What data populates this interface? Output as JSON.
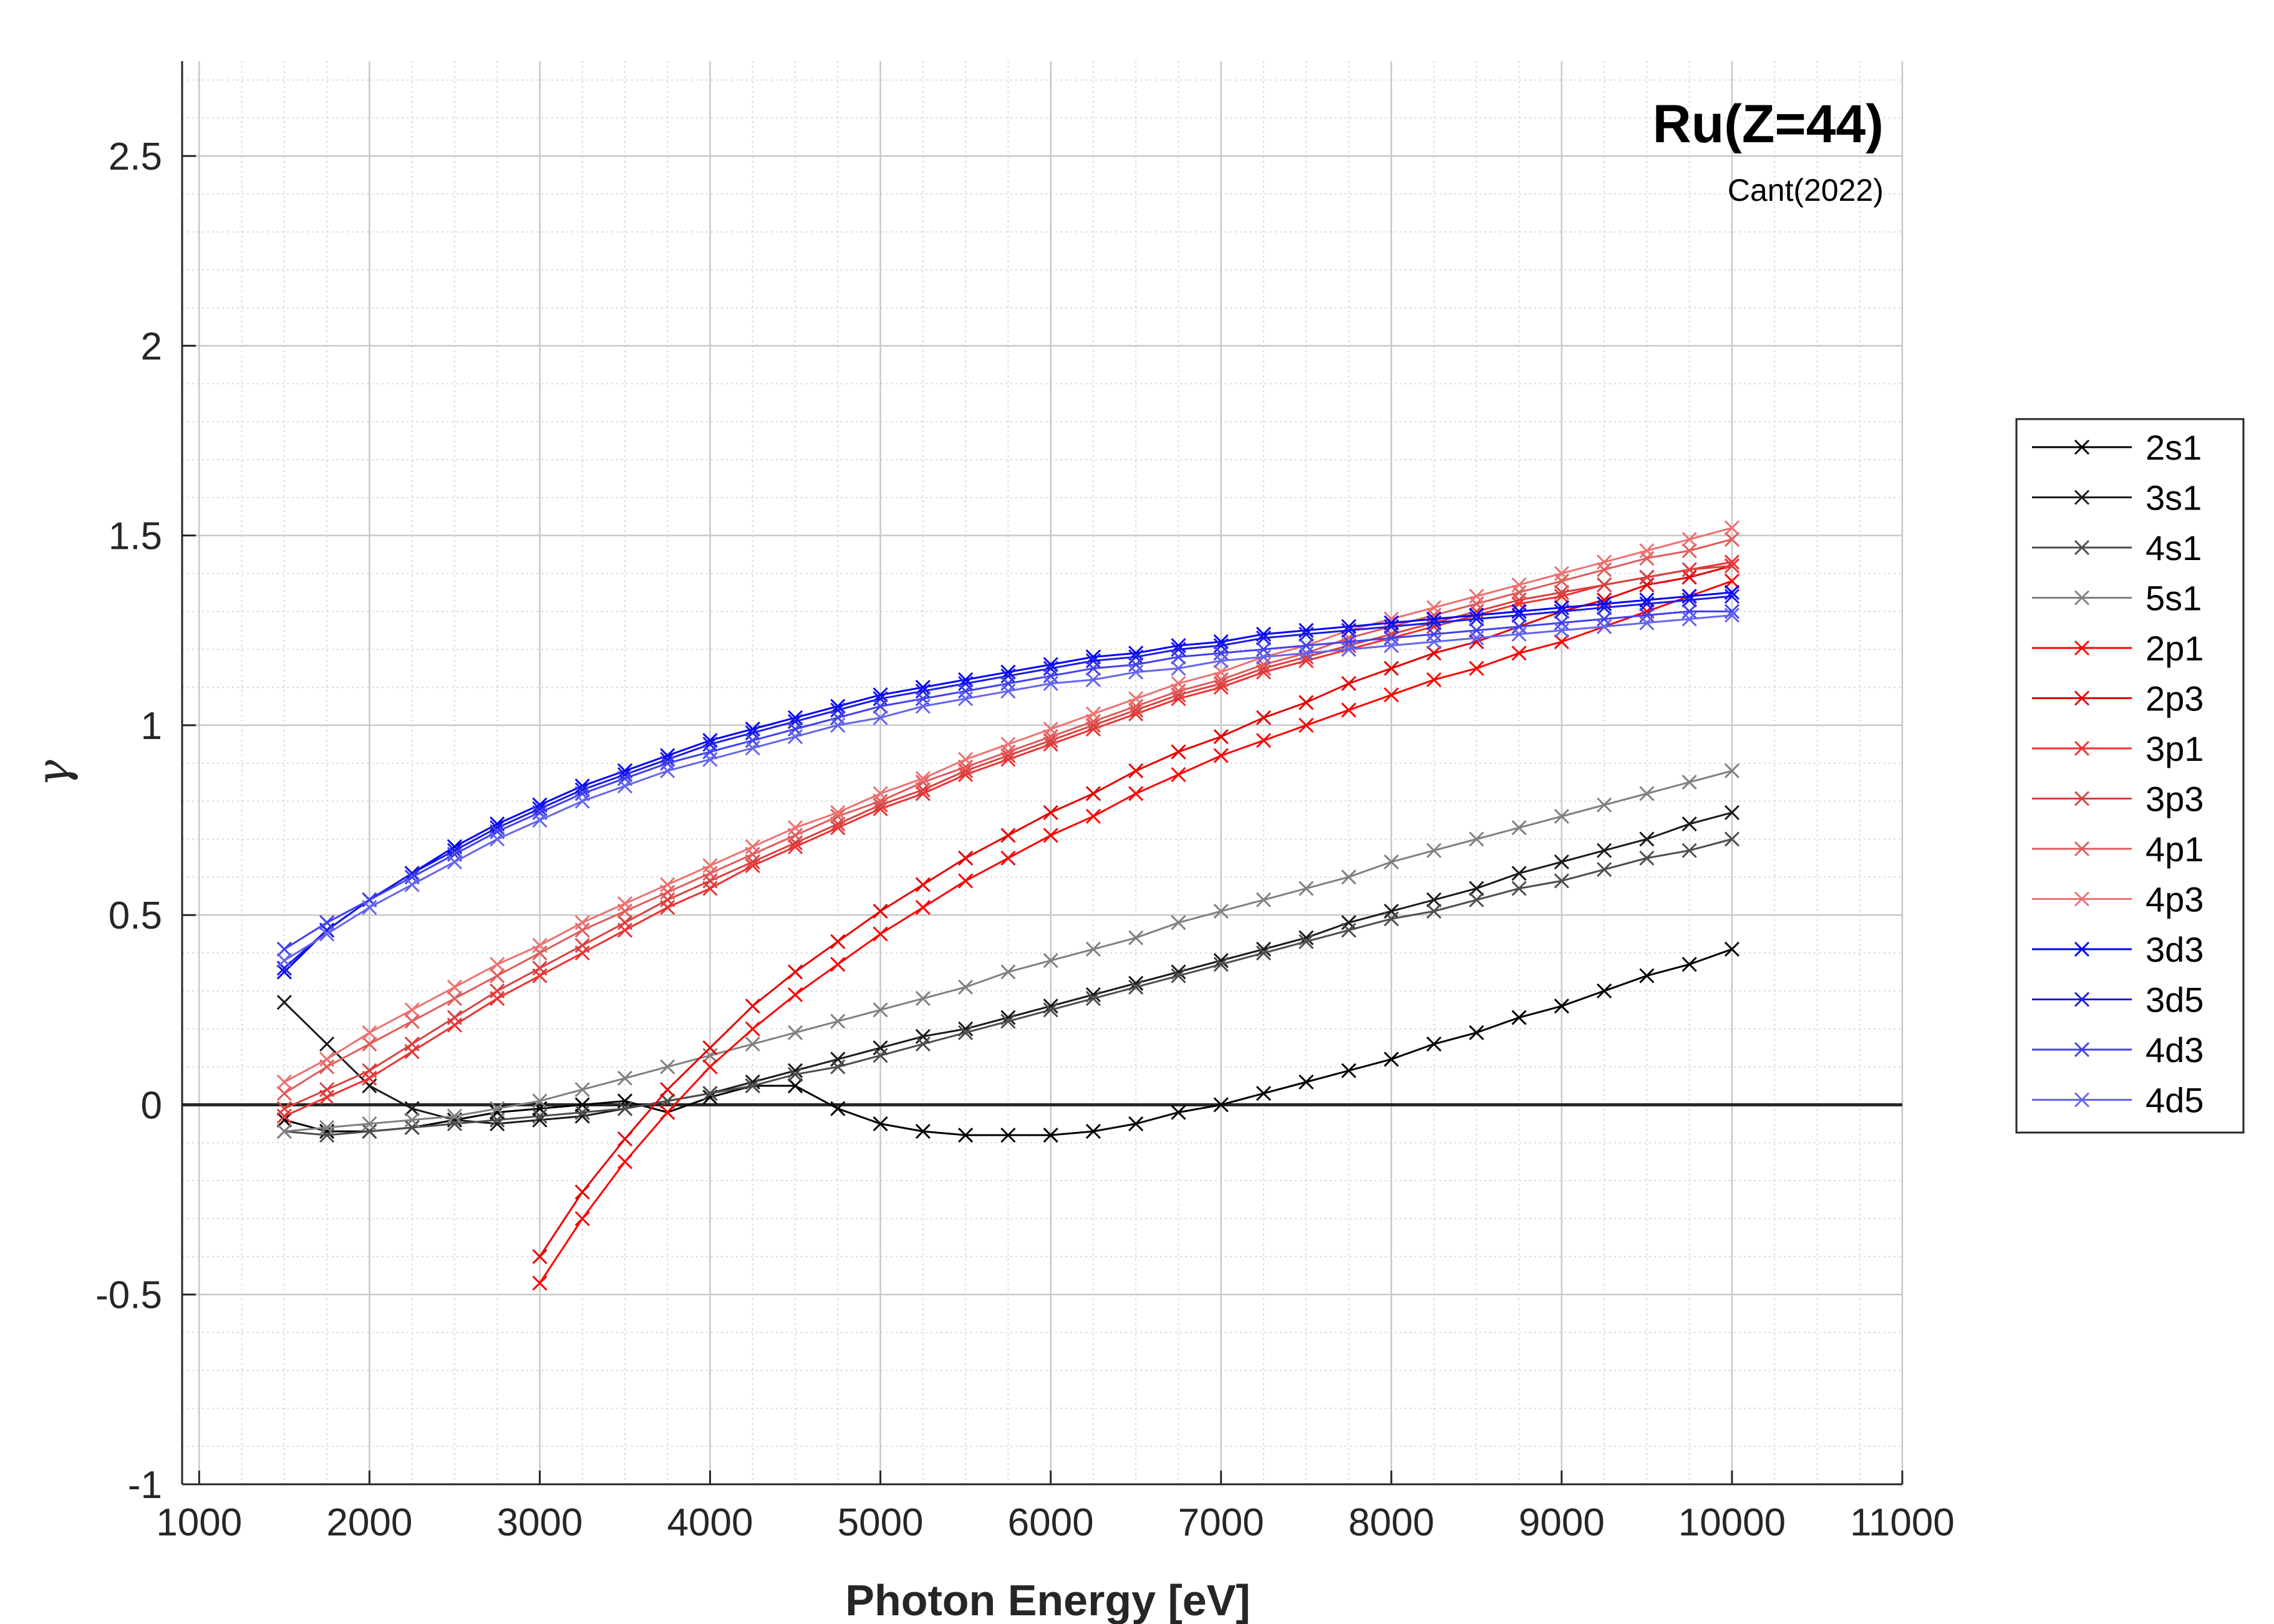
{
  "chart_data": {
    "type": "line",
    "title": "Ru(Z=44)",
    "subtitle": "Cant(2022)",
    "xlabel": "Photon Energy [eV]",
    "ylabel": "γ",
    "xlim": [
      900,
      11000
    ],
    "ylim": [
      -1,
      2.75
    ],
    "xticks": [
      1000,
      2000,
      3000,
      4000,
      5000,
      6000,
      7000,
      8000,
      9000,
      10000,
      11000
    ],
    "yticks": [
      -1,
      -0.5,
      0,
      0.5,
      1,
      1.5,
      2,
      2.5
    ],
    "xtick_labels": [
      "1000",
      "2000",
      "3000",
      "4000",
      "5000",
      "6000",
      "7000",
      "8000",
      "9000",
      "10000",
      "11000"
    ],
    "ytick_labels": [
      "-1",
      "-0.5",
      "0",
      "0.5",
      "1",
      "1.5",
      "2",
      "2.5"
    ],
    "grid": "on (major and minor)",
    "legend_position": "right-outside",
    "marker": "x",
    "series": [
      {
        "name": "2s1",
        "color": "#000000",
        "x": [
          1500,
          1750,
          2000,
          2250,
          2500,
          2750,
          3000,
          3250,
          3500,
          3750,
          4000,
          4250,
          4500,
          4750,
          5000,
          5250,
          5500,
          5750,
          6000,
          6250,
          6500,
          6750,
          7000,
          7250,
          7500,
          7750,
          8000,
          8250,
          8500,
          8750,
          9000,
          9250,
          9500,
          9750,
          10000
        ],
        "y": [
          -0.04,
          -0.07,
          -0.07,
          -0.06,
          -0.04,
          -0.02,
          -0.01,
          0.0,
          0.01,
          -0.02,
          0.02,
          0.05,
          0.05,
          -0.01,
          -0.05,
          -0.07,
          -0.08,
          -0.08,
          -0.08,
          -0.07,
          -0.05,
          -0.02,
          0.0,
          0.03,
          0.06,
          0.09,
          0.12,
          0.16,
          0.19,
          0.23,
          0.26,
          0.3,
          0.34,
          0.37,
          0.41
        ]
      },
      {
        "name": "3s1",
        "color": "#1a1a1a",
        "x": [
          1500,
          1750,
          2000,
          2250,
          2500,
          2750,
          3000,
          3250,
          3500,
          3750,
          4000,
          4250,
          4500,
          4750,
          5000,
          5250,
          5500,
          5750,
          6000,
          6250,
          6500,
          6750,
          7000,
          7250,
          7500,
          7750,
          8000,
          8250,
          8500,
          8750,
          9000,
          9250,
          9500,
          9750,
          10000
        ],
        "y": [
          0.27,
          0.16,
          0.05,
          -0.01,
          -0.04,
          -0.05,
          -0.04,
          -0.03,
          -0.01,
          0.01,
          0.03,
          0.06,
          0.09,
          0.12,
          0.15,
          0.18,
          0.2,
          0.23,
          0.26,
          0.29,
          0.32,
          0.35,
          0.38,
          0.41,
          0.44,
          0.48,
          0.51,
          0.54,
          0.57,
          0.61,
          0.64,
          0.67,
          0.7,
          0.74,
          0.77
        ]
      },
      {
        "name": "4s1",
        "color": "#4d4d4d",
        "x": [
          1500,
          1750,
          2000,
          2250,
          2500,
          2750,
          3000,
          3250,
          3500,
          3750,
          4000,
          4250,
          4500,
          4750,
          5000,
          5250,
          5500,
          5750,
          6000,
          6250,
          6500,
          6750,
          7000,
          7250,
          7500,
          7750,
          8000,
          8250,
          8500,
          8750,
          9000,
          9250,
          9500,
          9750,
          10000
        ],
        "y": [
          -0.07,
          -0.08,
          -0.07,
          -0.06,
          -0.05,
          -0.04,
          -0.03,
          -0.02,
          -0.01,
          0.01,
          0.03,
          0.05,
          0.08,
          0.1,
          0.13,
          0.16,
          0.19,
          0.22,
          0.25,
          0.28,
          0.31,
          0.34,
          0.37,
          0.4,
          0.43,
          0.46,
          0.49,
          0.51,
          0.54,
          0.57,
          0.59,
          0.62,
          0.65,
          0.67,
          0.7
        ]
      },
      {
        "name": "5s1",
        "color": "#808080",
        "x": [
          1500,
          1750,
          2000,
          2250,
          2500,
          2750,
          3000,
          3250,
          3500,
          3750,
          4000,
          4250,
          4500,
          4750,
          5000,
          5250,
          5500,
          5750,
          6000,
          6250,
          6500,
          6750,
          7000,
          7250,
          7500,
          7750,
          8000,
          8250,
          8500,
          8750,
          9000,
          9250,
          9500,
          9750,
          10000
        ],
        "y": [
          -0.07,
          -0.06,
          -0.05,
          -0.04,
          -0.03,
          -0.01,
          0.01,
          0.04,
          0.07,
          0.1,
          0.13,
          0.16,
          0.19,
          0.22,
          0.25,
          0.28,
          0.31,
          0.35,
          0.38,
          0.41,
          0.44,
          0.48,
          0.51,
          0.54,
          0.57,
          0.6,
          0.64,
          0.67,
          0.7,
          0.73,
          0.76,
          0.79,
          0.82,
          0.85,
          0.88
        ]
      },
      {
        "name": "2p1",
        "color": "#ff0000",
        "x": [
          3000,
          3250,
          3500,
          3750,
          4000,
          4250,
          4500,
          4750,
          5000,
          5250,
          5500,
          5750,
          6000,
          6250,
          6500,
          6750,
          7000,
          7250,
          7500,
          7750,
          8000,
          8250,
          8500,
          8750,
          9000,
          9250,
          9500,
          9750,
          10000
        ],
        "y": [
          -0.47,
          -0.3,
          -0.15,
          -0.02,
          0.1,
          0.2,
          0.29,
          0.37,
          0.45,
          0.52,
          0.59,
          0.65,
          0.71,
          0.76,
          0.82,
          0.87,
          0.92,
          0.96,
          1.0,
          1.04,
          1.08,
          1.12,
          1.15,
          1.19,
          1.22,
          1.26,
          1.3,
          1.34,
          1.38
        ]
      },
      {
        "name": "2p3",
        "color": "#e60000",
        "x": [
          3000,
          3250,
          3500,
          3750,
          4000,
          4250,
          4500,
          4750,
          5000,
          5250,
          5500,
          5750,
          6000,
          6250,
          6500,
          6750,
          7000,
          7250,
          7500,
          7750,
          8000,
          8250,
          8500,
          8750,
          9000,
          9250,
          9500,
          9750,
          10000
        ],
        "y": [
          -0.4,
          -0.23,
          -0.09,
          0.04,
          0.15,
          0.26,
          0.35,
          0.43,
          0.51,
          0.58,
          0.65,
          0.71,
          0.77,
          0.82,
          0.88,
          0.93,
          0.97,
          1.02,
          1.06,
          1.11,
          1.15,
          1.19,
          1.22,
          1.26,
          1.3,
          1.33,
          1.37,
          1.39,
          1.42
        ]
      },
      {
        "name": "3p1",
        "color": "#f03030",
        "x": [
          1500,
          1750,
          2000,
          2250,
          2500,
          2750,
          3000,
          3250,
          3500,
          3750,
          4000,
          4250,
          4500,
          4750,
          5000,
          5250,
          5500,
          5750,
          6000,
          6250,
          6500,
          6750,
          7000,
          7250,
          7500,
          7750,
          8000,
          8250,
          8500,
          8750,
          9000,
          9250,
          9500,
          9750,
          10000
        ],
        "y": [
          -0.03,
          0.02,
          0.07,
          0.14,
          0.21,
          0.28,
          0.34,
          0.4,
          0.46,
          0.52,
          0.57,
          0.63,
          0.68,
          0.73,
          0.78,
          0.82,
          0.87,
          0.91,
          0.95,
          0.99,
          1.03,
          1.07,
          1.1,
          1.14,
          1.17,
          1.2,
          1.23,
          1.26,
          1.29,
          1.32,
          1.34,
          1.37,
          1.39,
          1.41,
          1.43
        ]
      },
      {
        "name": "3p3",
        "color": "#d94040",
        "x": [
          1500,
          1750,
          2000,
          2250,
          2500,
          2750,
          3000,
          3250,
          3500,
          3750,
          4000,
          4250,
          4500,
          4750,
          5000,
          5250,
          5500,
          5750,
          6000,
          6250,
          6500,
          6750,
          7000,
          7250,
          7500,
          7750,
          8000,
          8250,
          8500,
          8750,
          9000,
          9250,
          9500,
          9750,
          10000
        ],
        "y": [
          -0.01,
          0.04,
          0.09,
          0.16,
          0.23,
          0.3,
          0.36,
          0.42,
          0.48,
          0.54,
          0.59,
          0.64,
          0.69,
          0.74,
          0.79,
          0.83,
          0.88,
          0.92,
          0.96,
          1.0,
          1.04,
          1.08,
          1.11,
          1.15,
          1.18,
          1.21,
          1.24,
          1.27,
          1.3,
          1.33,
          1.35,
          1.37,
          1.39,
          1.41,
          1.42
        ]
      },
      {
        "name": "4p1",
        "color": "#e05a5a",
        "x": [
          1500,
          1750,
          2000,
          2250,
          2500,
          2750,
          3000,
          3250,
          3500,
          3750,
          4000,
          4250,
          4500,
          4750,
          5000,
          5250,
          5500,
          5750,
          6000,
          6250,
          6500,
          6750,
          7000,
          7250,
          7500,
          7750,
          8000,
          8250,
          8500,
          8750,
          9000,
          9250,
          9500,
          9750,
          10000
        ],
        "y": [
          0.03,
          0.1,
          0.16,
          0.22,
          0.28,
          0.34,
          0.4,
          0.46,
          0.51,
          0.56,
          0.61,
          0.66,
          0.71,
          0.76,
          0.8,
          0.85,
          0.89,
          0.93,
          0.97,
          1.01,
          1.05,
          1.09,
          1.12,
          1.16,
          1.19,
          1.23,
          1.26,
          1.29,
          1.32,
          1.35,
          1.38,
          1.41,
          1.44,
          1.46,
          1.49
        ]
      },
      {
        "name": "4p3",
        "color": "#ee7070",
        "x": [
          1500,
          1750,
          2000,
          2250,
          2500,
          2750,
          3000,
          3250,
          3500,
          3750,
          4000,
          4250,
          4500,
          4750,
          5000,
          5250,
          5500,
          5750,
          6000,
          6250,
          6500,
          6750,
          7000,
          7250,
          7500,
          7750,
          8000,
          8250,
          8500,
          8750,
          9000,
          9250,
          9500,
          9750,
          10000
        ],
        "y": [
          0.06,
          0.12,
          0.19,
          0.25,
          0.31,
          0.37,
          0.42,
          0.48,
          0.53,
          0.58,
          0.63,
          0.68,
          0.73,
          0.77,
          0.82,
          0.86,
          0.91,
          0.95,
          0.99,
          1.03,
          1.07,
          1.11,
          1.14,
          1.18,
          1.21,
          1.25,
          1.28,
          1.31,
          1.34,
          1.37,
          1.4,
          1.43,
          1.46,
          1.49,
          1.52
        ]
      },
      {
        "name": "3d3",
        "color": "#0000ff",
        "x": [
          1500,
          1750,
          2000,
          2250,
          2500,
          2750,
          3000,
          3250,
          3500,
          3750,
          4000,
          4250,
          4500,
          4750,
          5000,
          5250,
          5500,
          5750,
          6000,
          6250,
          6500,
          6750,
          7000,
          7250,
          7500,
          7750,
          8000,
          8250,
          8500,
          8750,
          9000,
          9250,
          9500,
          9750,
          10000
        ],
        "y": [
          0.35,
          0.46,
          0.54,
          0.61,
          0.68,
          0.74,
          0.79,
          0.84,
          0.88,
          0.92,
          0.96,
          0.99,
          1.02,
          1.05,
          1.08,
          1.1,
          1.12,
          1.14,
          1.16,
          1.18,
          1.19,
          1.21,
          1.22,
          1.24,
          1.25,
          1.26,
          1.27,
          1.28,
          1.29,
          1.3,
          1.31,
          1.32,
          1.33,
          1.34,
          1.35
        ]
      },
      {
        "name": "3d5",
        "color": "#1a1ae6",
        "x": [
          1500,
          1750,
          2000,
          2250,
          2500,
          2750,
          3000,
          3250,
          3500,
          3750,
          4000,
          4250,
          4500,
          4750,
          5000,
          5250,
          5500,
          5750,
          6000,
          6250,
          6500,
          6750,
          7000,
          7250,
          7500,
          7750,
          8000,
          8250,
          8500,
          8750,
          9000,
          9250,
          9500,
          9750,
          10000
        ],
        "y": [
          0.36,
          0.46,
          0.54,
          0.61,
          0.67,
          0.73,
          0.78,
          0.83,
          0.87,
          0.91,
          0.95,
          0.98,
          1.01,
          1.04,
          1.07,
          1.09,
          1.11,
          1.13,
          1.15,
          1.17,
          1.18,
          1.2,
          1.21,
          1.23,
          1.24,
          1.25,
          1.26,
          1.27,
          1.28,
          1.29,
          1.3,
          1.31,
          1.32,
          1.33,
          1.34
        ]
      },
      {
        "name": "4d3",
        "color": "#4040f0",
        "x": [
          1500,
          1750,
          2000,
          2250,
          2500,
          2750,
          3000,
          3250,
          3500,
          3750,
          4000,
          4250,
          4500,
          4750,
          5000,
          5250,
          5500,
          5750,
          6000,
          6250,
          6500,
          6750,
          7000,
          7250,
          7500,
          7750,
          8000,
          8250,
          8500,
          8750,
          9000,
          9250,
          9500,
          9750,
          10000
        ],
        "y": [
          0.41,
          0.48,
          0.54,
          0.6,
          0.66,
          0.72,
          0.77,
          0.82,
          0.86,
          0.9,
          0.93,
          0.96,
          0.99,
          1.02,
          1.05,
          1.07,
          1.09,
          1.11,
          1.13,
          1.15,
          1.16,
          1.18,
          1.19,
          1.2,
          1.21,
          1.22,
          1.23,
          1.24,
          1.25,
          1.26,
          1.27,
          1.28,
          1.29,
          1.3,
          1.3
        ]
      },
      {
        "name": "4d5",
        "color": "#6464f0",
        "x": [
          1500,
          1750,
          2000,
          2250,
          2500,
          2750,
          3000,
          3250,
          3500,
          3750,
          4000,
          4250,
          4500,
          4750,
          5000,
          5250,
          5500,
          5750,
          6000,
          6250,
          6500,
          6750,
          7000,
          7250,
          7500,
          7750,
          8000,
          8250,
          8500,
          8750,
          9000,
          9250,
          9500,
          9750,
          10000
        ],
        "y": [
          0.38,
          0.45,
          0.52,
          0.58,
          0.64,
          0.7,
          0.75,
          0.8,
          0.84,
          0.88,
          0.91,
          0.94,
          0.97,
          1.0,
          1.02,
          1.05,
          1.07,
          1.09,
          1.11,
          1.12,
          1.14,
          1.15,
          1.17,
          1.18,
          1.19,
          1.2,
          1.21,
          1.22,
          1.23,
          1.24,
          1.25,
          1.26,
          1.27,
          1.28,
          1.29
        ]
      }
    ]
  }
}
